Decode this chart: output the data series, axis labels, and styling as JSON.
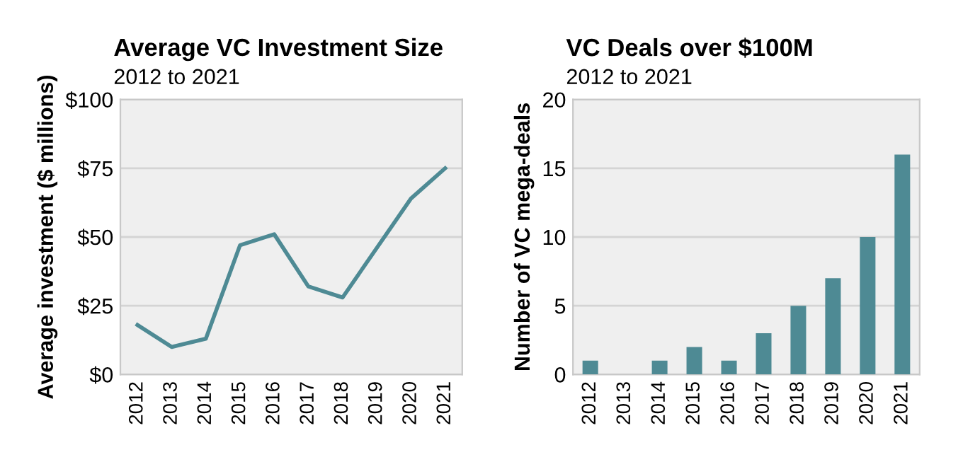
{
  "chart_data": [
    {
      "type": "line",
      "title": "Average VC Investment Size",
      "subtitle": "2012 to 2021",
      "ylabel": "Average investment ($ millions)",
      "categories": [
        "2012",
        "2013",
        "2014",
        "2015",
        "2016",
        "2017",
        "2018",
        "2019",
        "2020",
        "2021"
      ],
      "series": [
        {
          "color": "#4e8a94",
          "values": [
            18,
            10,
            13,
            47,
            51,
            32,
            28,
            46,
            64,
            75
          ]
        }
      ],
      "ylim": [
        0,
        100
      ],
      "yticks": [
        {
          "value": 0,
          "label": "$0"
        },
        {
          "value": 25,
          "label": "$25"
        },
        {
          "value": 50,
          "label": "$50"
        },
        {
          "value": 75,
          "label": "$75"
        },
        {
          "value": 100,
          "label": "$100"
        }
      ],
      "grid": "y",
      "marker": "none",
      "line_style": "solid"
    },
    {
      "type": "bar",
      "title": "VC Deals over $100M",
      "subtitle": "2012 to 2021",
      "ylabel": "Number of VC mega-deals",
      "categories": [
        "2012",
        "2013",
        "2014",
        "2015",
        "2016",
        "2017",
        "2018",
        "2019",
        "2020",
        "2021"
      ],
      "series": [
        {
          "color": "#4e8a94",
          "values": [
            1,
            0,
            1,
            2,
            1,
            3,
            5,
            7,
            10,
            16
          ]
        }
      ],
      "ylim": [
        0,
        20
      ],
      "yticks": [
        0,
        5,
        10,
        15,
        20
      ],
      "grid": "y"
    }
  ]
}
